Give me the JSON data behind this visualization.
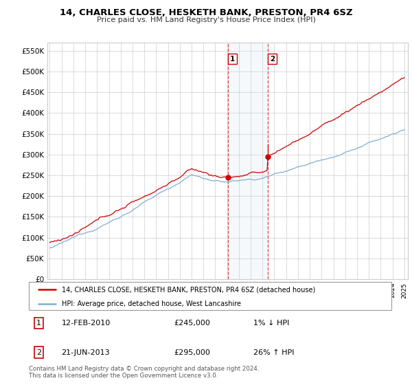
{
  "title": "14, CHARLES CLOSE, HESKETH BANK, PRESTON, PR4 6SZ",
  "subtitle": "Price paid vs. HM Land Registry's House Price Index (HPI)",
  "ylim": [
    0,
    570000
  ],
  "yticks": [
    0,
    50000,
    100000,
    150000,
    200000,
    250000,
    300000,
    350000,
    400000,
    450000,
    500000,
    550000
  ],
  "ytick_labels": [
    "£0",
    "£50K",
    "£100K",
    "£150K",
    "£200K",
    "£250K",
    "£300K",
    "£350K",
    "£400K",
    "£450K",
    "£500K",
    "£550K"
  ],
  "xlim_start": 1994.8,
  "xlim_end": 2025.3,
  "grid_color": "#cccccc",
  "sale1_year": 2010.1,
  "sale1_price": 245000,
  "sale2_year": 2013.47,
  "sale2_price": 295000,
  "legend_line1": "14, CHARLES CLOSE, HESKETH BANK, PRESTON, PR4 6SZ (detached house)",
  "legend_line2": "HPI: Average price, detached house, West Lancashire",
  "table_row1": [
    "1",
    "12-FEB-2010",
    "£245,000",
    "1% ↓ HPI"
  ],
  "table_row2": [
    "2",
    "21-JUN-2013",
    "£295,000",
    "26% ↑ HPI"
  ],
  "footnote": "Contains HM Land Registry data © Crown copyright and database right 2024.\nThis data is licensed under the Open Government Licence v3.0.",
  "red_color": "#cc0000",
  "blue_color": "#7fafd4",
  "shade_color": "#ddeeff"
}
